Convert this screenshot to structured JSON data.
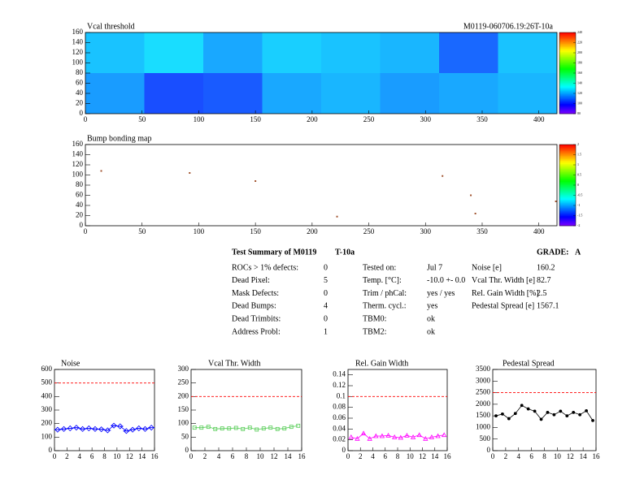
{
  "chart_data": [
    {
      "type": "heatmap",
      "title": "Vcal threshold",
      "subtitle": "M0119-060706.19:26T-10a",
      "xbins": [
        0,
        52,
        104,
        156,
        208,
        260,
        312,
        364,
        416
      ],
      "ybins": [
        0,
        80,
        160
      ],
      "z": [
        [
          118,
          106,
          108,
          120,
          122,
          118,
          120,
          122
        ],
        [
          124,
          128,
          120,
          126,
          124,
          122,
          110,
          124
        ]
      ],
      "xlim": [
        0,
        416
      ],
      "xticks": [
        0,
        50,
        100,
        150,
        200,
        250,
        300,
        350,
        400
      ],
      "ylim": [
        0,
        160
      ],
      "yticks": [
        0,
        20,
        40,
        60,
        80,
        100,
        120,
        140,
        160
      ],
      "zlim": [
        80,
        240
      ],
      "zticks": [
        80,
        100,
        120,
        140,
        160,
        180,
        200,
        220,
        240
      ]
    },
    {
      "type": "scatter",
      "title": "Bump bonding map",
      "color": "#a0522d",
      "x": [
        14,
        92,
        150,
        315,
        340,
        222,
        344,
        415
      ],
      "y": [
        108,
        104,
        88,
        98,
        60,
        18,
        24,
        48
      ],
      "xlim": [
        0,
        416
      ],
      "xticks": [
        0,
        50,
        100,
        150,
        200,
        250,
        300,
        350,
        400
      ],
      "ylim": [
        0,
        160
      ],
      "yticks": [
        0,
        20,
        40,
        60,
        80,
        100,
        120,
        140,
        160
      ],
      "zlim": [
        -2,
        2
      ],
      "zticks": [
        -2,
        -1.5,
        -1,
        -0.5,
        0,
        0.5,
        1,
        1.5,
        2
      ]
    },
    {
      "type": "line",
      "title": "Noise",
      "color": "#0000ff",
      "marker": "diamond",
      "threshold": 500,
      "x": [
        0.5,
        1.5,
        2.5,
        3.5,
        4.5,
        5.5,
        6.5,
        7.5,
        8.5,
        9.5,
        10.5,
        11.5,
        12.5,
        13.5,
        14.5,
        15.5
      ],
      "values": [
        155,
        160,
        165,
        170,
        160,
        165,
        160,
        158,
        150,
        185,
        180,
        145,
        155,
        165,
        160,
        170
      ],
      "xlim": [
        0,
        16
      ],
      "xticks": [
        0,
        2,
        4,
        6,
        8,
        10,
        12,
        14,
        16
      ],
      "ylim": [
        0,
        600
      ],
      "yticks": [
        0,
        100,
        200,
        300,
        400,
        500,
        600
      ]
    },
    {
      "type": "line",
      "title": "Vcal Thr. Width",
      "color": "#55cc55",
      "marker": "square",
      "threshold": 200,
      "x": [
        0.5,
        1.5,
        2.5,
        3.5,
        4.5,
        5.5,
        6.5,
        7.5,
        8.5,
        9.5,
        10.5,
        11.5,
        12.5,
        13.5,
        14.5,
        15.5
      ],
      "values": [
        85,
        85,
        88,
        80,
        82,
        82,
        84,
        80,
        85,
        78,
        82,
        85,
        80,
        82,
        88,
        92
      ],
      "xlim": [
        0,
        16
      ],
      "xticks": [
        0,
        2,
        4,
        6,
        8,
        10,
        12,
        14,
        16
      ],
      "ylim": [
        0,
        300
      ],
      "yticks": [
        0,
        50,
        100,
        150,
        200,
        250,
        300
      ]
    },
    {
      "type": "line",
      "title": "Rel. Gain Width",
      "color": "#ff00ff",
      "marker": "triangle",
      "threshold": 0.1,
      "x": [
        0.5,
        1.5,
        2.5,
        3.5,
        4.5,
        5.5,
        6.5,
        7.5,
        8.5,
        9.5,
        10.5,
        11.5,
        12.5,
        13.5,
        14.5,
        15.5
      ],
      "values": [
        0.025,
        0.022,
        0.032,
        0.022,
        0.027,
        0.027,
        0.028,
        0.025,
        0.024,
        0.028,
        0.025,
        0.029,
        0.022,
        0.025,
        0.027,
        0.029
      ],
      "xlim": [
        0,
        16
      ],
      "xticks": [
        0,
        2,
        4,
        6,
        8,
        10,
        12,
        14,
        16
      ],
      "ylim": [
        0,
        0.15
      ],
      "yticks": [
        0,
        0.02,
        0.04,
        0.06,
        0.08,
        0.1,
        0.12,
        0.14
      ]
    },
    {
      "type": "line",
      "title": "Pedestal Spread",
      "color": "#000000",
      "marker": "dot",
      "threshold": 2500,
      "x": [
        0.5,
        1.5,
        2.5,
        3.5,
        4.5,
        5.5,
        6.5,
        7.5,
        8.5,
        9.5,
        10.5,
        11.5,
        12.5,
        13.5,
        14.5,
        15.5
      ],
      "values": [
        1500,
        1580,
        1380,
        1600,
        1950,
        1800,
        1700,
        1350,
        1650,
        1550,
        1700,
        1500,
        1650,
        1550,
        1720,
        1300
      ],
      "xlim": [
        0,
        16
      ],
      "xticks": [
        0,
        2,
        4,
        6,
        8,
        10,
        12,
        14,
        16
      ],
      "ylim": [
        0,
        3500
      ],
      "yticks": [
        0,
        500,
        1000,
        1500,
        2000,
        2500,
        3000,
        3500
      ]
    }
  ],
  "summary": {
    "title": "Test Summary of M0119",
    "test": "T-10a",
    "grade_label": "GRADE:",
    "grade": "A",
    "columns": [
      [
        [
          "ROCs > 1% defects:",
          0
        ],
        [
          "Dead Pixel:",
          5
        ],
        [
          "Mask Defects:",
          0
        ],
        [
          "Dead Bumps:",
          4
        ],
        [
          "Dead Trimbits:",
          0
        ],
        [
          "Address Probl:",
          1
        ]
      ],
      [
        [
          "Tested on:",
          "Jul 7"
        ],
        [
          "Temp. [°C]:",
          "-10.0 +- 0.0"
        ],
        [
          "Trim / phCal:",
          "yes / yes"
        ],
        [
          "Therm. cycl.:",
          "yes"
        ],
        [
          "TBM0:",
          "ok"
        ],
        [
          "TBM2:",
          "ok"
        ]
      ],
      [
        [
          "Noise [e]",
          160.2
        ],
        [
          "Vcal Thr. Width [e]",
          82.7
        ],
        [
          "Rel. Gain Width [%]",
          2.5
        ],
        [
          "Pedestal Spread [e]",
          1567.1
        ]
      ]
    ]
  }
}
